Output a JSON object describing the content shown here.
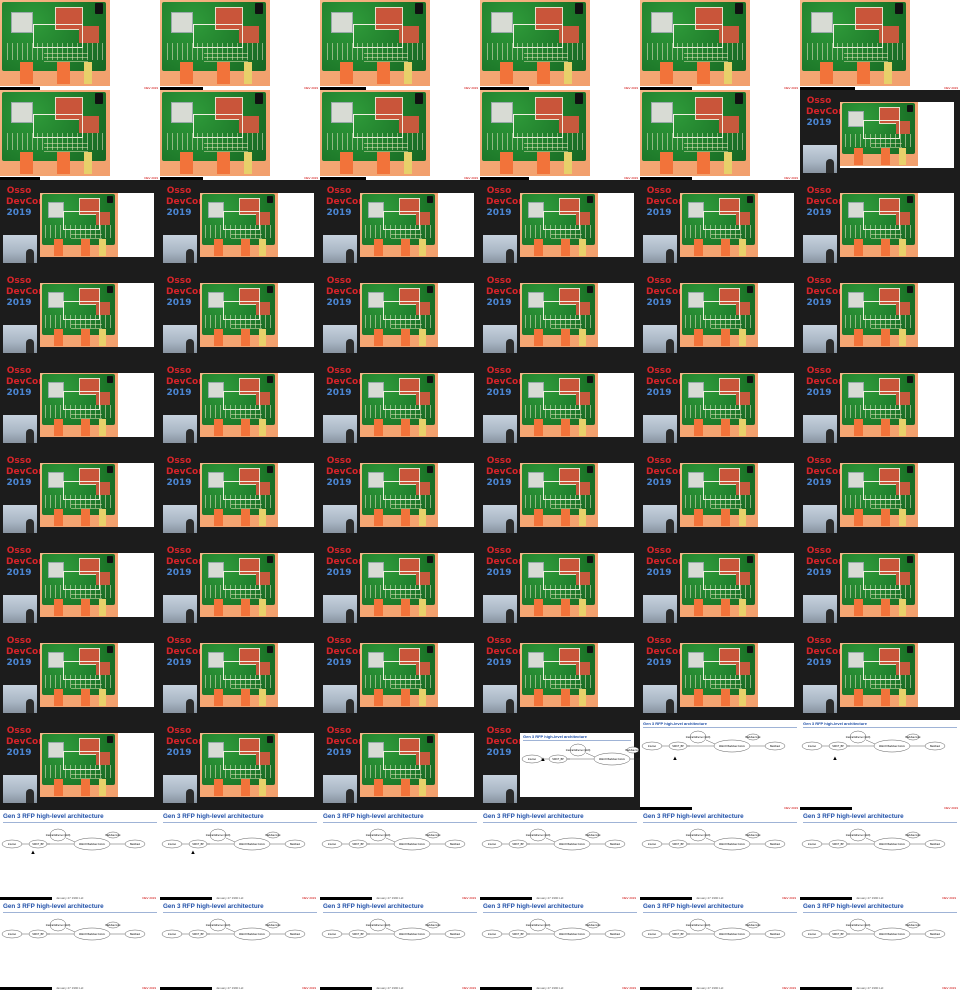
{
  "grid": {
    "columns": 6,
    "rows": 11
  },
  "talk_logo": {
    "line1": "Osso",
    "line2": "DevCon",
    "line3": "2019"
  },
  "slide": {
    "title": "Gen 3 RFP high-level architecture",
    "nodes": [
      "Internet",
      "SWCT_BP",
      "Internal Ethernet (LAN)",
      "Wall-IO Backhaul Comm",
      "Backhaul",
      "Backhaul Link"
    ],
    "footer_text": "January 27 1990 Ltd",
    "page_marker": "DEV 2019"
  },
  "colors": {
    "pcb_green": "#1e7a2a",
    "pcb_bg": "#f4a673",
    "talk_bg": "#1c1c1c",
    "logo_red": "#d8242a",
    "logo_blue": "#4a86d4",
    "slide_title": "#1f4fa8"
  },
  "frames": [
    "board",
    "board",
    "board",
    "board",
    "board",
    "board",
    "board",
    "board",
    "board",
    "board",
    "board",
    "talk-small",
    "talk",
    "talk",
    "talk",
    "talk",
    "talk",
    "talk",
    "talk",
    "talk",
    "talk",
    "talk",
    "talk",
    "talk",
    "talk",
    "talk",
    "talk",
    "talk",
    "talk",
    "talk",
    "talk",
    "talk",
    "talk",
    "talk",
    "talk",
    "talk",
    "talk",
    "talk",
    "talk",
    "talk",
    "talk",
    "talk",
    "talk",
    "talk",
    "talk",
    "talk",
    "talk",
    "talk",
    "talk",
    "talk",
    "talk",
    "talk-slide",
    "slide-small",
    "slide-small",
    "slide",
    "slide",
    "slide",
    "slide",
    "slide",
    "slide",
    "slide",
    "slide",
    "slide",
    "slide",
    "slide",
    "slide"
  ]
}
